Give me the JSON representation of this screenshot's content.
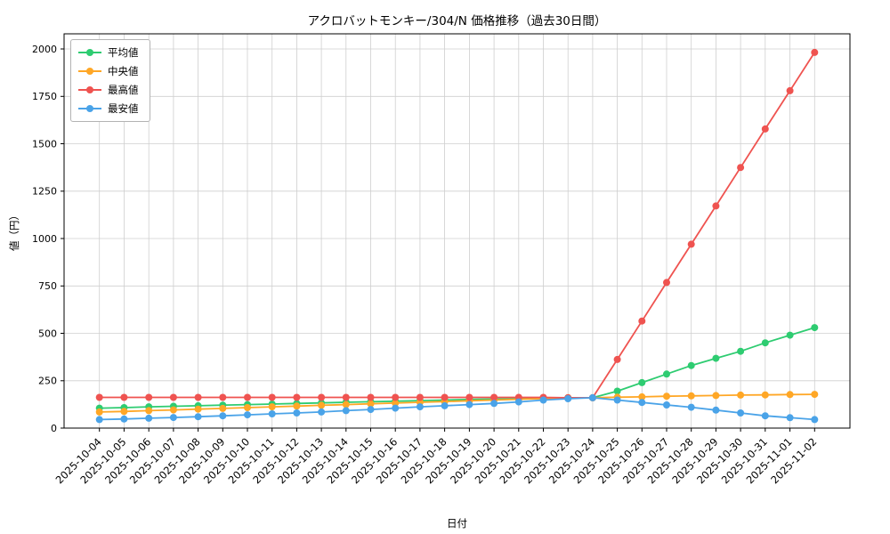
{
  "chart_data": {
    "type": "line",
    "title": "アクロバットモンキー/304/N 価格推移（過去30日間）",
    "xlabel": "日付",
    "ylabel": "値（円）",
    "ylim": [
      0,
      2080
    ],
    "yticks": [
      0,
      250,
      500,
      750,
      1000,
      1250,
      1500,
      1750,
      2000
    ],
    "grid": true,
    "legend_position": "upper left",
    "x": [
      "2025-10-04",
      "2025-10-05",
      "2025-10-06",
      "2025-10-07",
      "2025-10-08",
      "2025-10-09",
      "2025-10-10",
      "2025-10-11",
      "2025-10-12",
      "2025-10-13",
      "2025-10-14",
      "2025-10-15",
      "2025-10-16",
      "2025-10-17",
      "2025-10-18",
      "2025-10-19",
      "2025-10-20",
      "2025-10-21",
      "2025-10-22",
      "2025-10-23",
      "2025-10-24",
      "2025-10-25",
      "2025-10-26",
      "2025-10-27",
      "2025-10-28",
      "2025-10-29",
      "2025-10-30",
      "2025-10-31",
      "2025-11-01",
      "2025-11-02"
    ],
    "series": [
      {
        "id": "average",
        "name": "平均値",
        "color": "#2ecc71",
        "values": [
          105,
          108,
          112,
          115,
          118,
          121,
          124,
          127,
          130,
          133,
          136,
          139,
          142,
          145,
          148,
          151,
          153,
          155,
          158,
          160,
          160,
          195,
          240,
          285,
          330,
          368,
          405,
          450,
          490,
          530
        ]
      },
      {
        "id": "median",
        "name": "中央値",
        "color": "#ffa726",
        "values": [
          85,
          88,
          92,
          96,
          100,
          104,
          108,
          112,
          116,
          120,
          124,
          128,
          132,
          136,
          140,
          144,
          148,
          152,
          156,
          160,
          160,
          163,
          165,
          168,
          170,
          172,
          174,
          175,
          177,
          178
        ]
      },
      {
        "id": "max",
        "name": "最高値",
        "color": "#ef5350",
        "values": [
          162,
          162,
          162,
          162,
          162,
          162,
          162,
          162,
          162,
          162,
          162,
          162,
          162,
          162,
          162,
          162,
          162,
          162,
          162,
          160,
          160,
          362,
          565,
          768,
          970,
          1172,
          1375,
          1578,
          1780,
          1982
        ]
      },
      {
        "id": "min",
        "name": "最安値",
        "color": "#4aa3e8",
        "values": [
          45,
          48,
          52,
          56,
          60,
          65,
          70,
          75,
          80,
          85,
          92,
          98,
          105,
          112,
          118,
          124,
          130,
          138,
          148,
          155,
          160,
          148,
          135,
          122,
          110,
          95,
          80,
          65,
          55,
          45
        ]
      }
    ]
  }
}
